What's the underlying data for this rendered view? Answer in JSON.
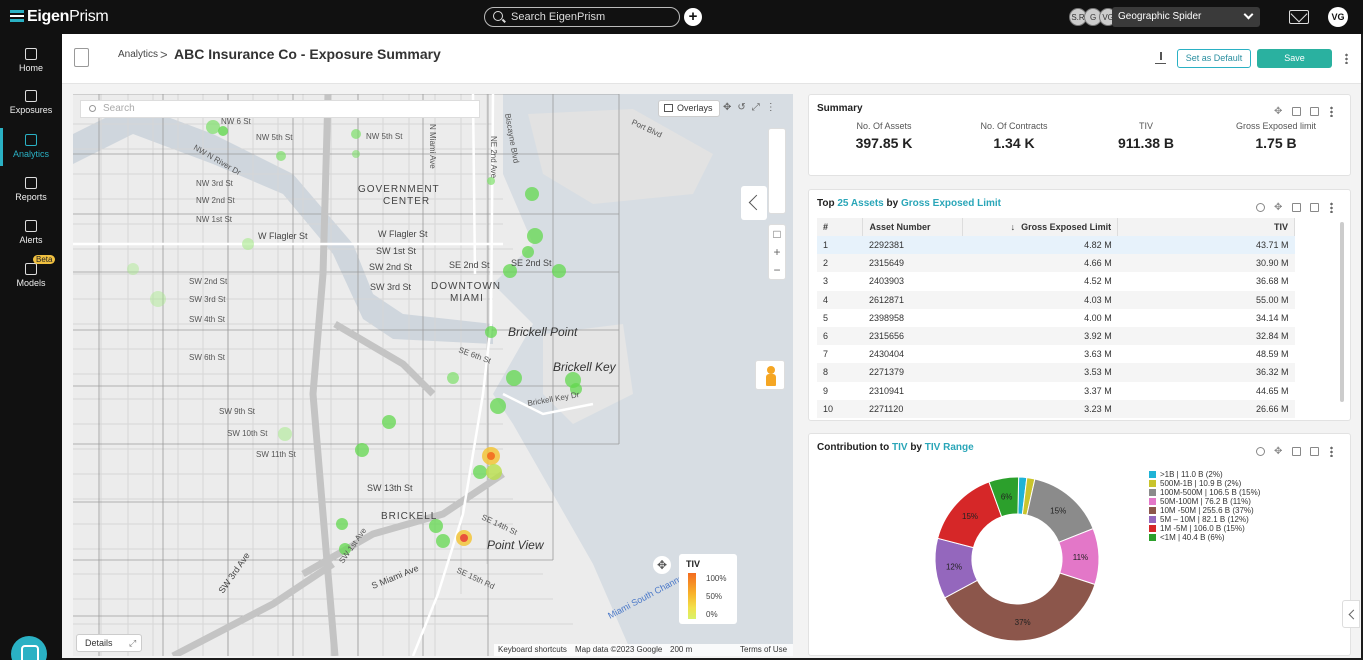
{
  "app": {
    "logo_eigen": "Eigen",
    "logo_prism": "Prism",
    "search_placeholder": "Search EigenPrism",
    "add_label": "+",
    "avatars": [
      "S.R",
      "G",
      "VG"
    ],
    "workspace": "Geographic Spider",
    "user_initials": "VG"
  },
  "nav": {
    "items": [
      {
        "label": "Home",
        "icon": "home-icon"
      },
      {
        "label": "Exposures",
        "icon": "exposures-icon"
      },
      {
        "label": "Analytics",
        "icon": "analytics-icon"
      },
      {
        "label": "Reports",
        "icon": "reports-icon"
      },
      {
        "label": "Alerts",
        "icon": "alerts-icon"
      },
      {
        "label": "Models",
        "icon": "models-icon"
      }
    ],
    "active": "Analytics",
    "beta_badge": "Beta"
  },
  "header": {
    "breadcrumb": "Analytics",
    "separator": ">",
    "title": "ABC Insurance Co - Exposure Summary",
    "set_default_label": "Set as Default",
    "save_label": "Save"
  },
  "map": {
    "search_placeholder": "Search",
    "overlays_label": "Overlays",
    "details_label": "Details",
    "legend": {
      "title": "TIV",
      "levels": [
        "100%",
        "50%",
        "0%"
      ]
    },
    "attribution": {
      "shortcuts": "Keyboard shortcuts",
      "data": "Map data ©2023 Google",
      "scale": "200 m",
      "terms": "Terms of Use"
    },
    "labels": [
      {
        "text": "GOVERNMENT",
        "kind": "district"
      },
      {
        "text": "CENTER",
        "kind": "district"
      },
      {
        "text": "DOWNTOWN",
        "kind": "district"
      },
      {
        "text": "MIAMI",
        "kind": "district"
      },
      {
        "text": "BRICKELL",
        "kind": "district"
      },
      {
        "text": "Brickell Point",
        "kind": "place"
      },
      {
        "text": "Brickell Key",
        "kind": "place"
      },
      {
        "text": "Point View",
        "kind": "place"
      },
      {
        "text": "Miami South Channel",
        "kind": "water"
      },
      {
        "text": "Port Blvd",
        "kind": "street"
      },
      {
        "text": "Biscayne Blvd",
        "kind": "street"
      },
      {
        "text": "NW 6 St",
        "kind": "street"
      },
      {
        "text": "NW 5th St",
        "kind": "street"
      },
      {
        "text": "NW 3rd St",
        "kind": "street"
      },
      {
        "text": "NW 2nd St",
        "kind": "street"
      },
      {
        "text": "NW 1st St",
        "kind": "street"
      },
      {
        "text": "W Flagler St",
        "kind": "street"
      },
      {
        "text": "SW 1st St",
        "kind": "street"
      },
      {
        "text": "SW 2nd St",
        "kind": "street"
      },
      {
        "text": "SE 2nd St",
        "kind": "street"
      },
      {
        "text": "SW 3rd St",
        "kind": "street"
      },
      {
        "text": "SW 4th St",
        "kind": "street"
      },
      {
        "text": "SW 6th St",
        "kind": "street"
      },
      {
        "text": "SE 6th St",
        "kind": "street"
      },
      {
        "text": "SW 8th St",
        "kind": "street"
      },
      {
        "text": "SW 9th St",
        "kind": "street"
      },
      {
        "text": "SW 10th St",
        "kind": "street"
      },
      {
        "text": "SW 11th St",
        "kind": "street"
      },
      {
        "text": "SW 13th St",
        "kind": "street"
      },
      {
        "text": "SE 14th St",
        "kind": "street"
      },
      {
        "text": "SE 15th Rd",
        "kind": "street"
      },
      {
        "text": "Brickell Key Dr",
        "kind": "street"
      },
      {
        "text": "S Miami Ave",
        "kind": "street"
      },
      {
        "text": "N Miami Ave",
        "kind": "street"
      },
      {
        "text": "NE 2nd Ave",
        "kind": "street"
      },
      {
        "text": "SW 3rd Ave",
        "kind": "street"
      },
      {
        "text": "SW 1st Ave",
        "kind": "street"
      },
      {
        "text": "NW N River Dr",
        "kind": "street"
      }
    ]
  },
  "summary": {
    "title": "Summary",
    "metrics": [
      {
        "label": "No. Of Assets",
        "value": "397.85 K"
      },
      {
        "label": "No. Of Contracts",
        "value": "1.34 K"
      },
      {
        "label": "TIV",
        "value": "911.38 B"
      },
      {
        "label": "Gross Exposed limit",
        "value": "1.75 B"
      }
    ]
  },
  "top_assets": {
    "title_prefix": "Top",
    "count": "25",
    "entity": "Assets",
    "by": "by",
    "measure": "Gross Exposed Limit",
    "columns": [
      "#",
      "Asset Number",
      "Gross Exposed Limit",
      "TIV"
    ],
    "sort_arrow": "↓",
    "rows": [
      {
        "n": "1",
        "asset": "2292381",
        "gel": "4.82 M",
        "tiv": "43.71 M"
      },
      {
        "n": "2",
        "asset": "2315649",
        "gel": "4.66 M",
        "tiv": "30.90 M"
      },
      {
        "n": "3",
        "asset": "2403903",
        "gel": "4.52 M",
        "tiv": "36.68 M"
      },
      {
        "n": "4",
        "asset": "2612871",
        "gel": "4.03 M",
        "tiv": "55.00 M"
      },
      {
        "n": "5",
        "asset": "2398958",
        "gel": "4.00 M",
        "tiv": "34.14 M"
      },
      {
        "n": "6",
        "asset": "2315656",
        "gel": "3.92 M",
        "tiv": "32.84 M"
      },
      {
        "n": "7",
        "asset": "2430404",
        "gel": "3.63 M",
        "tiv": "48.59 M"
      },
      {
        "n": "8",
        "asset": "2271379",
        "gel": "3.53 M",
        "tiv": "36.32 M"
      },
      {
        "n": "9",
        "asset": "2310941",
        "gel": "3.37 M",
        "tiv": "44.65 M"
      },
      {
        "n": "10",
        "asset": "2271120",
        "gel": "3.23 M",
        "tiv": "26.66 M"
      }
    ]
  },
  "contribution": {
    "title_prefix": "Contribution to",
    "measure": "TIV",
    "by": "by",
    "dimension": "TIV Range"
  },
  "chart_data": {
    "type": "pie",
    "donut": true,
    "legend": "right",
    "slices": [
      {
        "label": ">1B | 11.0 B (2%)",
        "value": 11.0,
        "pct": 2,
        "color": "#1fb3d6"
      },
      {
        "label": "500M-1B | 10.9 B (2%)",
        "value": 10.9,
        "pct": 2,
        "color": "#c9c42c"
      },
      {
        "label": "100M-500M | 106.5 B (15%)",
        "value": 106.5,
        "pct": 15,
        "color": "#8b8b8b"
      },
      {
        "label": "50M-100M | 76.2 B (11%)",
        "value": 76.2,
        "pct": 11,
        "color": "#e377c8"
      },
      {
        "label": "10M -50M | 255.6 B (37%)",
        "value": 255.6,
        "pct": 37,
        "color": "#8c564b"
      },
      {
        "label": "5M – 10M | 82.1 B (12%)",
        "value": 82.1,
        "pct": 12,
        "color": "#9467bd"
      },
      {
        "label": "1M -5M | 106.0 B (15%)",
        "value": 106.0,
        "pct": 15,
        "color": "#d62728"
      },
      {
        "label": "<1M | 40.4 B (6%)",
        "value": 40.4,
        "pct": 6,
        "color": "#2ca02c"
      }
    ],
    "slice_labels": [
      "",
      "",
      "15%",
      "11%",
      "37%",
      "12%",
      "15%",
      "6%"
    ]
  }
}
